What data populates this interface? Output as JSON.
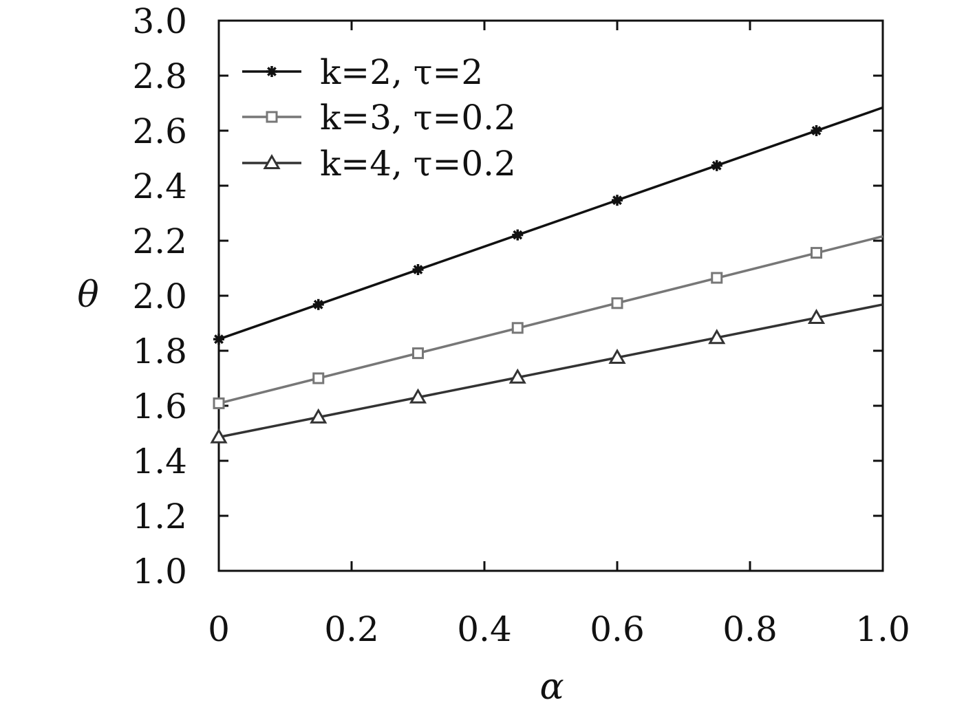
{
  "chart_data": {
    "type": "line",
    "xlabel": "α",
    "ylabel": "θ",
    "xlim": [
      0,
      1.0
    ],
    "ylim": [
      1.0,
      3.0
    ],
    "x_ticks": [
      {
        "v": 0,
        "label": "0"
      },
      {
        "v": 0.2,
        "label": "0.2"
      },
      {
        "v": 0.4,
        "label": "0.4"
      },
      {
        "v": 0.6,
        "label": "0.6"
      },
      {
        "v": 0.8,
        "label": "0.8"
      },
      {
        "v": 1.0,
        "label": "1.0"
      }
    ],
    "y_ticks": [
      {
        "v": 1.0,
        "label": "1.0"
      },
      {
        "v": 1.2,
        "label": "1.2"
      },
      {
        "v": 1.4,
        "label": "1.4"
      },
      {
        "v": 1.6,
        "label": "1.6"
      },
      {
        "v": 1.8,
        "label": "1.8"
      },
      {
        "v": 2.0,
        "label": "2.0"
      },
      {
        "v": 2.2,
        "label": "2.2"
      },
      {
        "v": 2.4,
        "label": "2.4"
      },
      {
        "v": 2.6,
        "label": "2.6"
      },
      {
        "v": 2.8,
        "label": "2.8"
      },
      {
        "v": 3.0,
        "label": "3.0"
      }
    ],
    "legend_position": "top-left",
    "grid": false,
    "series": [
      {
        "name": "k=2, τ=2",
        "color": "#111111",
        "marker": "asterisk",
        "line_x": [
          0,
          1.0
        ],
        "line_y": [
          1.842,
          2.684
        ],
        "x": [
          0,
          0.15,
          0.3,
          0.45,
          0.6,
          0.75,
          0.9
        ],
        "y": [
          1.842,
          1.968,
          2.095,
          2.221,
          2.347,
          2.473,
          2.6
        ]
      },
      {
        "name": "k=3, τ=0.2",
        "color": "#777777",
        "marker": "square",
        "line_x": [
          0,
          1.0
        ],
        "line_y": [
          1.609,
          2.216
        ],
        "x": [
          0,
          0.15,
          0.3,
          0.45,
          0.6,
          0.75,
          0.9
        ],
        "y": [
          1.609,
          1.7,
          1.791,
          1.883,
          1.973,
          2.065,
          2.156
        ]
      },
      {
        "name": "k=4, τ=0.2",
        "color": "#333333",
        "marker": "triangle",
        "line_x": [
          0,
          1.0
        ],
        "line_y": [
          1.486,
          1.968
        ],
        "x": [
          0,
          0.15,
          0.3,
          0.45,
          0.6,
          0.75,
          0.9
        ],
        "y": [
          1.486,
          1.558,
          1.631,
          1.703,
          1.775,
          1.847,
          1.92
        ]
      }
    ]
  }
}
